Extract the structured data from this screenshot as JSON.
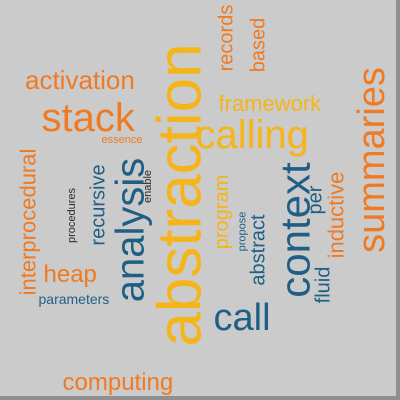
{
  "palette": {
    "background": "#cbcbcb",
    "frame_shadow": "#8f8f8f",
    "orange": "#f07a22",
    "gold": "#f5b418",
    "blue": "#1f5f86",
    "dark": "#2a2a2a"
  },
  "words": [
    {
      "text": "abstraction",
      "color": "gold"
    },
    {
      "text": "summaries",
      "color": "orange"
    },
    {
      "text": "context",
      "color": "blue"
    },
    {
      "text": "analysis",
      "color": "blue"
    },
    {
      "text": "stack",
      "color": "orange"
    },
    {
      "text": "calling",
      "color": "gold"
    },
    {
      "text": "call",
      "color": "blue"
    },
    {
      "text": "activation",
      "color": "orange"
    },
    {
      "text": "computing",
      "color": "orange"
    },
    {
      "text": "interprocedural",
      "color": "orange"
    },
    {
      "text": "framework",
      "color": "gold"
    },
    {
      "text": "inductive",
      "color": "orange"
    },
    {
      "text": "recursive",
      "color": "blue"
    },
    {
      "text": "program",
      "color": "gold"
    },
    {
      "text": "abstract",
      "color": "blue"
    },
    {
      "text": "heap",
      "color": "orange"
    },
    {
      "text": "fluid",
      "color": "blue"
    },
    {
      "text": "records",
      "color": "orange"
    },
    {
      "text": "based",
      "color": "orange"
    },
    {
      "text": "per",
      "color": "blue"
    },
    {
      "text": "parameters",
      "color": "blue"
    },
    {
      "text": "procedures",
      "color": "dark"
    },
    {
      "text": "propose",
      "color": "blue"
    },
    {
      "text": "essence",
      "color": "orange"
    },
    {
      "text": "enable",
      "color": "dark"
    }
  ]
}
